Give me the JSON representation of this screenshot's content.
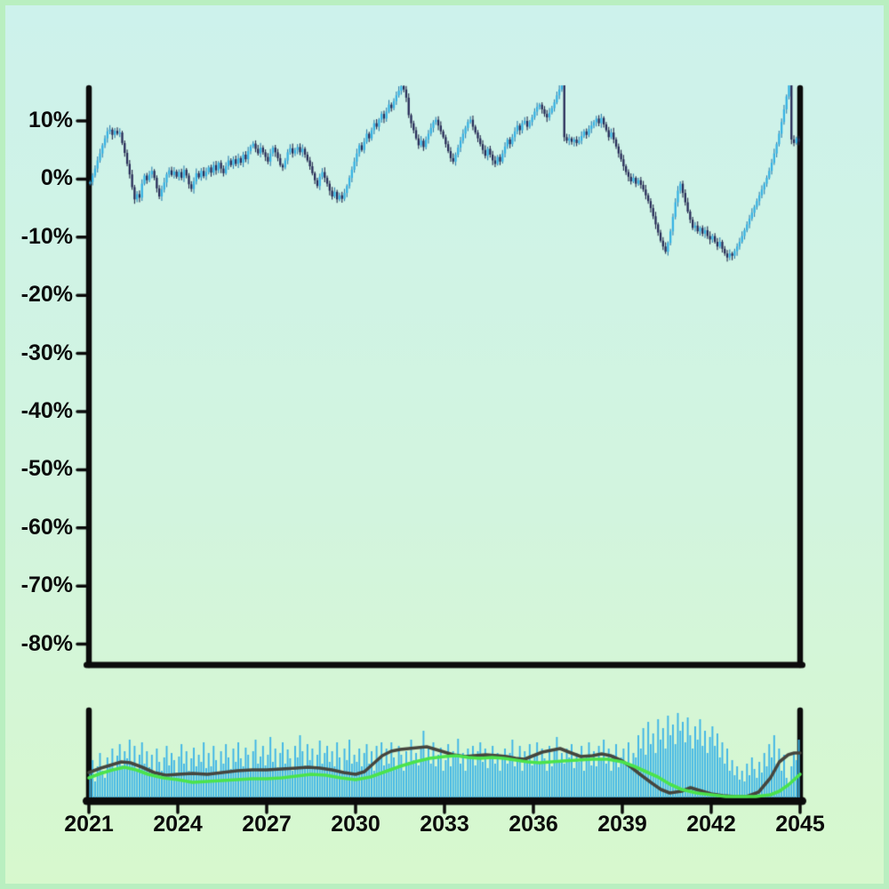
{
  "figure": {
    "background": {
      "edge_color": "#b9efc0",
      "top_color": "#cdf2ec",
      "mid_color": "#d2f4df",
      "bottom_color": "#d7f8cd"
    },
    "axis_color": "#0b0b0b"
  },
  "chart_data": {
    "type": "candlestick",
    "title": "",
    "grid": false,
    "x": {
      "start_year": 2021,
      "end_year": 2045,
      "frequency": "monthly",
      "tick_years": [
        2021,
        2024,
        2027,
        2030,
        2033,
        2036,
        2039,
        2042,
        2045
      ]
    },
    "main_panel": {
      "ylabel": "",
      "y_range": [
        -83.5,
        16.0
      ],
      "y_ticks": [
        {
          "label": "10%",
          "value": 10
        },
        {
          "label": "0%",
          "value": 0
        },
        {
          "label": "-10%",
          "value": -10
        },
        {
          "label": "-20%",
          "value": -20
        },
        {
          "label": "-30%",
          "value": -30
        },
        {
          "label": "-40%",
          "value": -40
        },
        {
          "label": "-50%",
          "value": -50
        },
        {
          "label": "-60%",
          "value": -60
        },
        {
          "label": "-70%",
          "value": -70
        },
        {
          "label": "-80%",
          "value": -80
        }
      ],
      "up_color": "#36b2e3",
      "down_color": "#282c58",
      "up_wick_color": "#2e7fae",
      "down_wick_color": "#222648",
      "close": [
        -0.5,
        0.6,
        1.8,
        3.2,
        4.4,
        5.8,
        7.0,
        8.2,
        8.5,
        7.6,
        8.3,
        7.8,
        8.0,
        6.2,
        4.5,
        2.6,
        0.8,
        -1.4,
        -3.5,
        -2.6,
        -3.2,
        -0.8,
        0.6,
        -0.2,
        0.8,
        1.4,
        0.2,
        -1.6,
        -3.0,
        -1.8,
        -0.6,
        0.8,
        1.5,
        0.7,
        1.3,
        0.4,
        1.2,
        0.2,
        1.6,
        0.6,
        -0.9,
        -1.7,
        -0.4,
        1.0,
        0.3,
        1.4,
        0.5,
        1.2,
        2.0,
        1.1,
        2.4,
        1.5,
        2.8,
        1.8,
        1.0,
        2.2,
        3.2,
        2.4,
        3.4,
        2.6,
        3.6,
        2.8,
        4.2,
        3.4,
        4.8,
        5.6,
        6.1,
        5.2,
        4.4,
        5.4,
        4.6,
        3.8,
        3.0,
        4.4,
        5.4,
        4.6,
        3.6,
        2.4,
        2.0,
        3.2,
        4.6,
        5.3,
        4.4,
        5.0,
        5.5,
        4.6,
        5.2,
        4.2,
        3.2,
        2.2,
        1.0,
        -0.2,
        -1.2,
        0.4,
        1.2,
        0.2,
        -0.8,
        -2.0,
        -3.0,
        -2.2,
        -3.5,
        -2.8,
        -3.4,
        -2.4,
        -1.2,
        0.2,
        1.6,
        3.0,
        4.4,
        5.8,
        5.0,
        6.4,
        7.8,
        7.0,
        8.4,
        9.6,
        9.0,
        10.2,
        11.2,
        10.4,
        11.6,
        12.8,
        12.2,
        13.4,
        14.4,
        15.2,
        16.0,
        15.4,
        14.0,
        11.0,
        9.6,
        8.4,
        7.0,
        5.8,
        6.6,
        5.5,
        6.8,
        7.8,
        8.8,
        9.8,
        10.2,
        9.2,
        8.2,
        7.2,
        6.0,
        4.8,
        3.6,
        3.0,
        4.2,
        5.4,
        6.6,
        7.8,
        8.8,
        9.8,
        10.2,
        9.0,
        8.0,
        7.0,
        6.0,
        5.0,
        4.0,
        5.2,
        4.2,
        3.2,
        2.6,
        3.8,
        3.0,
        4.4,
        5.6,
        6.8,
        6.0,
        7.2,
        8.2,
        9.2,
        8.4,
        9.6,
        10.0,
        9.0,
        9.8,
        10.6,
        11.6,
        12.4,
        12.8,
        12.0,
        11.2,
        10.6,
        11.4,
        12.2,
        13.2,
        14.4,
        15.4,
        16.2,
        7.2,
        6.6,
        7.0,
        6.4,
        6.8,
        6.2,
        6.6,
        7.4,
        8.2,
        7.6,
        8.6,
        9.2,
        9.8,
        10.4,
        9.6,
        10.5,
        9.4,
        8.4,
        7.2,
        8.0,
        6.8,
        5.6,
        4.4,
        3.4,
        2.2,
        1.2,
        0.4,
        -0.4,
        0.2,
        -0.8,
        -0.2,
        -1.0,
        -1.8,
        -2.8,
        -3.8,
        -5.0,
        -6.4,
        -7.8,
        -9.2,
        -10.6,
        -11.6,
        -12.5,
        -11.0,
        -9.0,
        -6.5,
        -4.0,
        -2.0,
        -0.8,
        -2.4,
        -4.0,
        -5.6,
        -7.0,
        -8.4,
        -8.0,
        -9.0,
        -8.4,
        -9.4,
        -8.8,
        -9.8,
        -10.4,
        -9.8,
        -10.8,
        -11.6,
        -10.8,
        -12.0,
        -12.8,
        -13.5,
        -12.8,
        -13.2,
        -12.4,
        -11.6,
        -10.8,
        -9.8,
        -8.8,
        -7.8,
        -6.8,
        -5.8,
        -4.8,
        -3.8,
        -2.8,
        -1.8,
        -0.8,
        0.2,
        1.4,
        2.8,
        4.4,
        6.0,
        7.8,
        9.8,
        12.0,
        14.2,
        16.5,
        6.8,
        6.2,
        7.0,
        6.4
      ]
    },
    "volume_panel": {
      "bar_color": "#3fb5e6",
      "values_pct": [
        28,
        42,
        18,
        35,
        50,
        30,
        22,
        45,
        38,
        55,
        33,
        47,
        60,
        36,
        52,
        44,
        65,
        40,
        58,
        30,
        48,
        62,
        38,
        52,
        34,
        48,
        28,
        55,
        40,
        30,
        45,
        58,
        36,
        50,
        42,
        28,
        46,
        60,
        38,
        52,
        30,
        44,
        56,
        35,
        48,
        40,
        62,
        33,
        50,
        35,
        58,
        42,
        28,
        52,
        38,
        60,
        45,
        32,
        55,
        40,
        62,
        44,
        35,
        56,
        48,
        30,
        52,
        65,
        38,
        46,
        58,
        36,
        48,
        68,
        40,
        55,
        34,
        50,
        62,
        38,
        54,
        44,
        30,
        58,
        45,
        70,
        52,
        36,
        60,
        42,
        55,
        33,
        48,
        64,
        38,
        50,
        58,
        40,
        52,
        35,
        62,
        45,
        30,
        55,
        42,
        65,
        38,
        48,
        40,
        55,
        35,
        50,
        60,
        38,
        52,
        30,
        58,
        44,
        62,
        36,
        55,
        38,
        62,
        45,
        35,
        58,
        48,
        30,
        52,
        40,
        65,
        42,
        50,
        36,
        58,
        75,
        44,
        55,
        38,
        62,
        35,
        48,
        56,
        30,
        42,
        60,
        35,
        52,
        45,
        66,
        38,
        50,
        30,
        55,
        44,
        58,
        36,
        52,
        62,
        40,
        55,
        33,
        48,
        58,
        38,
        50,
        30,
        45,
        55,
        38,
        50,
        65,
        35,
        45,
        58,
        30,
        52,
        42,
        60,
        36,
        48,
        62,
        38,
        55,
        44,
        30,
        58,
        35,
        52,
        68,
        40,
        50,
        38,
        55,
        45,
        60,
        33,
        50,
        40,
        58,
        30,
        46,
        62,
        36,
        52,
        35,
        58,
        42,
        65,
        38,
        55,
        30,
        48,
        60,
        34,
        45,
        55,
        40,
        62,
        35,
        50,
        45,
        70,
        55,
        78,
        48,
        85,
        60,
        72,
        50,
        88,
        65,
        78,
        55,
        92,
        70,
        82,
        60,
        95,
        75,
        85,
        62,
        90,
        70,
        55,
        80,
        65,
        88,
        58,
        75,
        50,
        68,
        80,
        58,
        72,
        45,
        62,
        38,
        55,
        30,
        42,
        25,
        35,
        20,
        30,
        18,
        38,
        25,
        45,
        32,
        22,
        40,
        28,
        50,
        35,
        60,
        45,
        70,
        38,
        55,
        30,
        48,
        22,
        15,
        35,
        50,
        42,
        65
      ],
      "lines": [
        {
          "name": "overlay-line-dark",
          "color": "#45453d",
          "points_year_pct": [
            [
              2021.0,
              28
            ],
            [
              2021.4,
              33
            ],
            [
              2021.8,
              37
            ],
            [
              2022.1,
              40
            ],
            [
              2022.4,
              39
            ],
            [
              2022.8,
              34
            ],
            [
              2023.2,
              28
            ],
            [
              2023.6,
              25
            ],
            [
              2024.0,
              26
            ],
            [
              2024.5,
              27
            ],
            [
              2025.0,
              26
            ],
            [
              2025.5,
              28
            ],
            [
              2026.0,
              30
            ],
            [
              2026.5,
              31
            ],
            [
              2027.0,
              31
            ],
            [
              2027.5,
              32
            ],
            [
              2028.0,
              33
            ],
            [
              2028.4,
              34
            ],
            [
              2028.8,
              33
            ],
            [
              2029.2,
              31
            ],
            [
              2029.6,
              28
            ],
            [
              2030.0,
              26
            ],
            [
              2030.3,
              29
            ],
            [
              2030.6,
              38
            ],
            [
              2030.9,
              47
            ],
            [
              2031.2,
              52
            ],
            [
              2031.5,
              54
            ],
            [
              2031.8,
              55
            ],
            [
              2032.1,
              56
            ],
            [
              2032.4,
              57
            ],
            [
              2032.7,
              54
            ],
            [
              2033.0,
              51
            ],
            [
              2033.3,
              48
            ],
            [
              2033.7,
              46
            ],
            [
              2034.0,
              47
            ],
            [
              2034.4,
              48
            ],
            [
              2034.8,
              47
            ],
            [
              2035.1,
              46
            ],
            [
              2035.4,
              44
            ],
            [
              2035.7,
              43
            ],
            [
              2036.0,
              47
            ],
            [
              2036.3,
              51
            ],
            [
              2036.6,
              53
            ],
            [
              2036.9,
              55
            ],
            [
              2037.2,
              51
            ],
            [
              2037.6,
              46
            ],
            [
              2038.0,
              47
            ],
            [
              2038.3,
              49
            ],
            [
              2038.6,
              47
            ],
            [
              2039.0,
              41
            ],
            [
              2039.3,
              34
            ],
            [
              2039.6,
              26
            ],
            [
              2040.0,
              16
            ],
            [
              2040.3,
              9
            ],
            [
              2040.6,
              5
            ],
            [
              2041.0,
              7
            ],
            [
              2041.3,
              11
            ],
            [
              2041.7,
              7
            ],
            [
              2042.0,
              4
            ],
            [
              2042.4,
              2
            ],
            [
              2042.8,
              1
            ],
            [
              2043.2,
              1
            ],
            [
              2043.6,
              6
            ],
            [
              2044.0,
              22
            ],
            [
              2044.3,
              40
            ],
            [
              2044.6,
              48
            ],
            [
              2044.8,
              50
            ],
            [
              2045.0,
              50
            ]
          ]
        },
        {
          "name": "overlay-line-green",
          "color": "#4be34b",
          "points_year_pct": [
            [
              2021.0,
              22
            ],
            [
              2021.4,
              27
            ],
            [
              2021.8,
              31
            ],
            [
              2022.2,
              34
            ],
            [
              2022.6,
              31
            ],
            [
              2023.0,
              26
            ],
            [
              2023.5,
              22
            ],
            [
              2024.0,
              20
            ],
            [
              2024.5,
              17
            ],
            [
              2025.0,
              18
            ],
            [
              2025.5,
              19
            ],
            [
              2026.0,
              20
            ],
            [
              2026.5,
              21
            ],
            [
              2027.0,
              21
            ],
            [
              2027.5,
              22
            ],
            [
              2028.0,
              24
            ],
            [
              2028.5,
              26
            ],
            [
              2029.0,
              25
            ],
            [
              2029.5,
              22
            ],
            [
              2030.0,
              20
            ],
            [
              2030.5,
              23
            ],
            [
              2031.0,
              29
            ],
            [
              2031.5,
              35
            ],
            [
              2032.0,
              40
            ],
            [
              2032.5,
              44
            ],
            [
              2033.0,
              46
            ],
            [
              2033.4,
              47
            ],
            [
              2033.8,
              45
            ],
            [
              2034.2,
              44
            ],
            [
              2034.6,
              45
            ],
            [
              2035.0,
              44
            ],
            [
              2035.4,
              42
            ],
            [
              2035.8,
              40
            ],
            [
              2036.2,
              39
            ],
            [
              2036.6,
              40
            ],
            [
              2037.0,
              41
            ],
            [
              2037.5,
              42
            ],
            [
              2038.0,
              43
            ],
            [
              2038.5,
              43
            ],
            [
              2039.0,
              40
            ],
            [
              2039.4,
              35
            ],
            [
              2039.8,
              29
            ],
            [
              2040.2,
              23
            ],
            [
              2040.6,
              15
            ],
            [
              2041.0,
              9
            ],
            [
              2041.5,
              5
            ],
            [
              2042.0,
              3
            ],
            [
              2042.5,
              1
            ],
            [
              2043.0,
              1
            ],
            [
              2043.5,
              1
            ],
            [
              2044.0,
              3
            ],
            [
              2044.3,
              7
            ],
            [
              2044.6,
              14
            ],
            [
              2044.8,
              20
            ],
            [
              2045.0,
              26
            ]
          ]
        }
      ]
    }
  }
}
